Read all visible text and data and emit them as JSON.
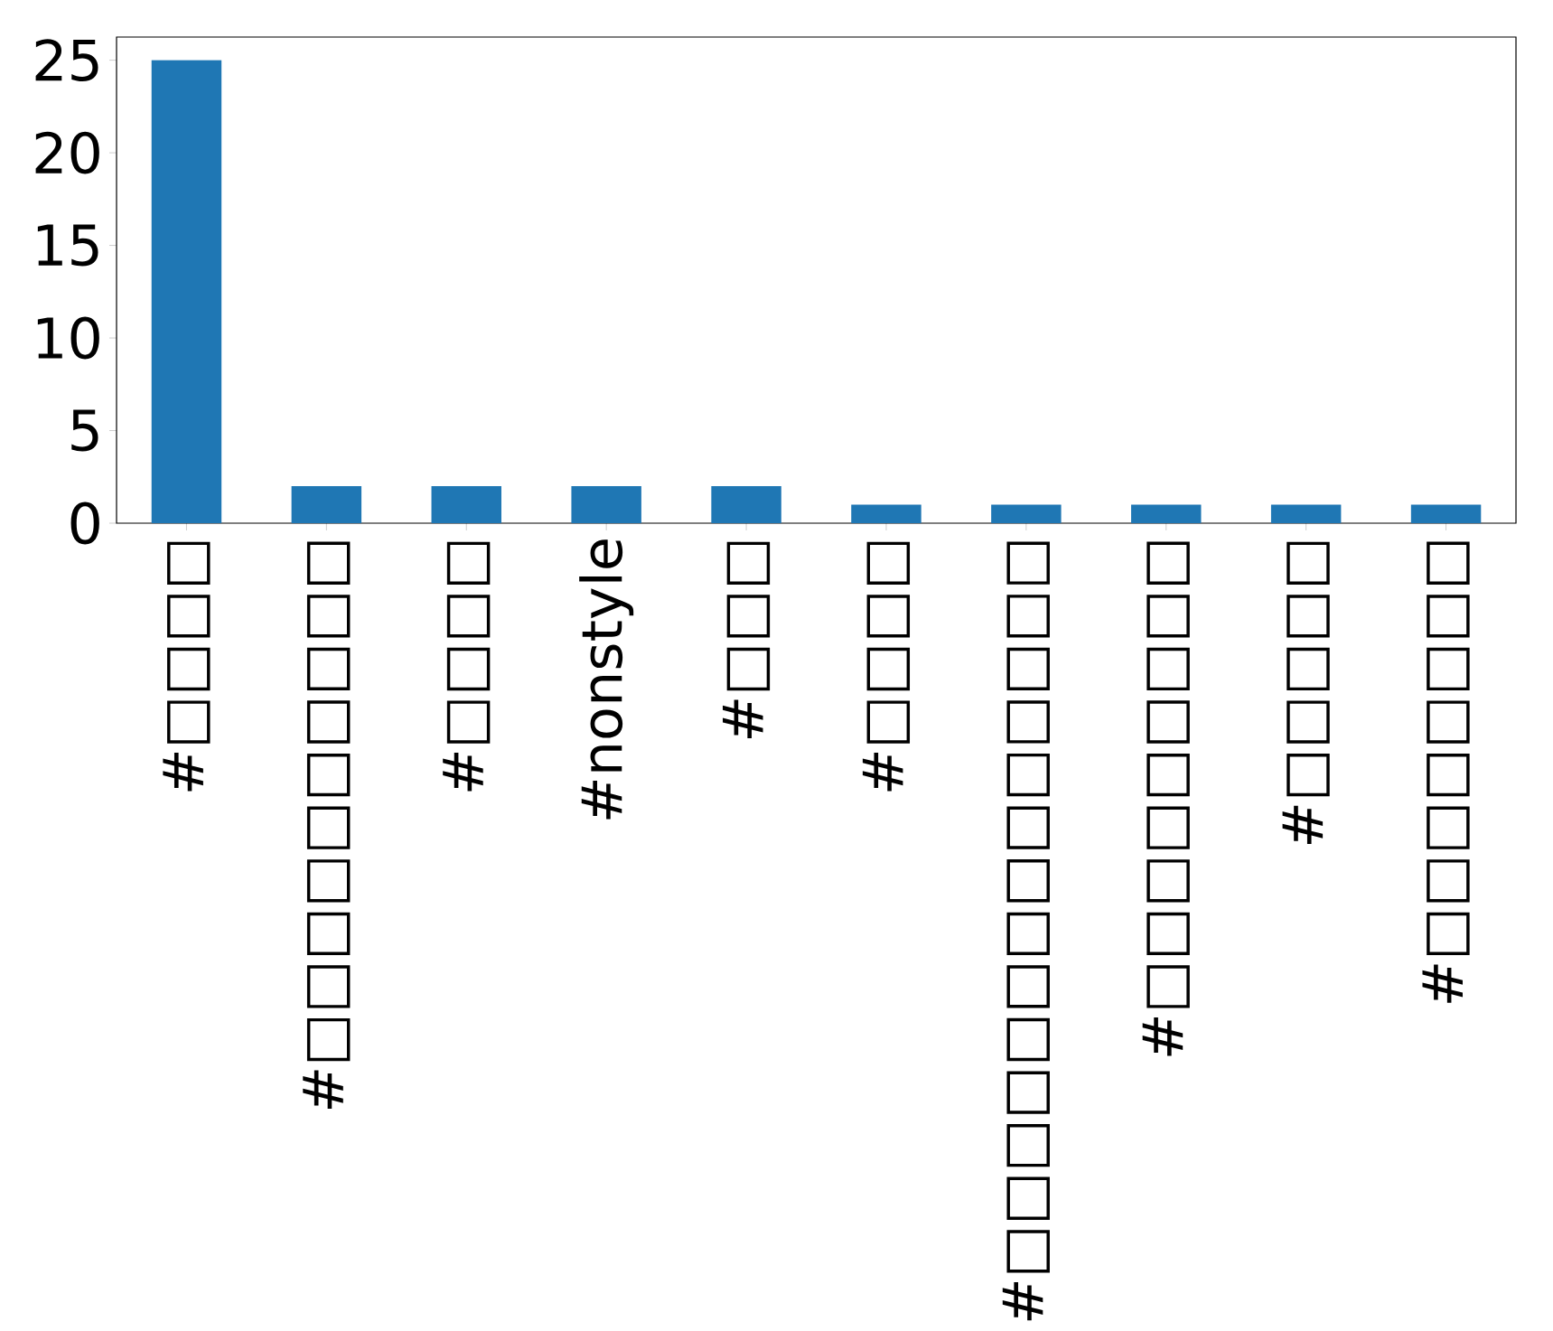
{
  "chart_data": {
    "type": "bar",
    "categories": [
      "#□□□□",
      "#□□□□□□□□□□",
      "#□□□□",
      "#nonstyle",
      "#□□□",
      "#□□□□",
      "#□□□□□□□□□□□□□□",
      "#□□□□□□□□□",
      "#□□□□□",
      "#□□□□□□□□"
    ],
    "values": [
      25,
      2,
      2,
      2,
      2,
      1,
      1,
      1,
      1,
      1
    ],
    "color": "#1f77b4",
    "ylim": [
      0,
      26.25
    ],
    "yticks": [
      0,
      5,
      10,
      15,
      20,
      25
    ]
  }
}
